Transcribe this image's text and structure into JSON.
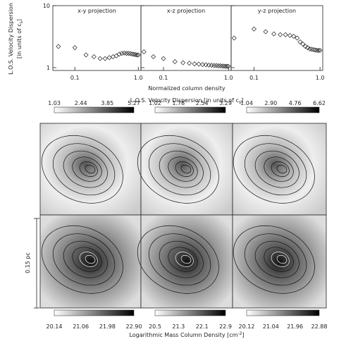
{
  "chart_data": [
    {
      "type": "scatter",
      "title": "x-y projection",
      "log_x": true,
      "log_y": true,
      "x": [
        0.055,
        0.1,
        0.15,
        0.2,
        0.25,
        0.3,
        0.35,
        0.4,
        0.45,
        0.5,
        0.55,
        0.6,
        0.65,
        0.7,
        0.75,
        0.8,
        0.85,
        0.9,
        0.95,
        1.0
      ],
      "values": [
        2.2,
        2.1,
        1.6,
        1.5,
        1.4,
        1.4,
        1.45,
        1.5,
        1.55,
        1.65,
        1.7,
        1.72,
        1.7,
        1.7,
        1.68,
        1.66,
        1.64,
        1.62,
        1.6,
        1.6
      ],
      "xlim": [
        0.045,
        1.1
      ],
      "ylim": [
        0.9,
        10
      ],
      "xticks": [
        0.1,
        {
          "value": 1,
          "label": "1.0"
        }
      ],
      "yticks": [
        1,
        10
      ]
    },
    {
      "type": "scatter",
      "title": "x-z projection",
      "log_x": true,
      "log_y": true,
      "x": [
        0.05,
        0.07,
        0.1,
        0.15,
        0.2,
        0.25,
        0.3,
        0.35,
        0.4,
        0.45,
        0.5,
        0.55,
        0.6,
        0.65,
        0.7,
        0.75,
        0.8,
        0.85,
        0.9,
        0.95,
        1.0
      ],
      "values": [
        1.8,
        1.5,
        1.4,
        1.25,
        1.2,
        1.18,
        1.15,
        1.14,
        1.12,
        1.11,
        1.1,
        1.09,
        1.08,
        1.08,
        1.07,
        1.07,
        1.06,
        1.06,
        1.05,
        1.05,
        1.05
      ],
      "xlim": [
        0.045,
        1.1
      ],
      "ylim": [
        0.9,
        10
      ],
      "xticks": [
        0.1,
        {
          "value": 1,
          "label": "1.0"
        }
      ],
      "yticks": [
        1,
        10
      ]
    },
    {
      "type": "scatter",
      "title": "y-z projection",
      "log_x": true,
      "log_y": true,
      "x": [
        0.05,
        0.1,
        0.15,
        0.2,
        0.25,
        0.3,
        0.35,
        0.4,
        0.45,
        0.5,
        0.55,
        0.6,
        0.65,
        0.7,
        0.75,
        0.8,
        0.85,
        0.9,
        0.95,
        1.0
      ],
      "values": [
        3.0,
        4.2,
        3.8,
        3.5,
        3.4,
        3.4,
        3.3,
        3.2,
        3.0,
        2.6,
        2.4,
        2.2,
        2.1,
        2.0,
        1.98,
        1.95,
        1.92,
        1.9,
        1.9,
        1.9
      ],
      "xlim": [
        0.045,
        1.1
      ],
      "ylim": [
        0.9,
        10
      ],
      "xticks": [
        0.1,
        {
          "value": 1,
          "label": "1.0"
        }
      ],
      "yticks": [
        1,
        10
      ]
    }
  ],
  "figure": {
    "ylabel_1": "L.O.S. Velocity Dispersion",
    "ylabel_2": "[in units of c",
    "ylabel_sub": "s",
    "ylabel_end": "]",
    "xlabel": "Normalized column density",
    "velocity_colorbar": {
      "title": "L.O.S. Velocity Dispersion [in units of c",
      "title_sub": "s",
      "title_end": "]",
      "ticks": [
        [
          "1.03",
          "2.44",
          "3.85",
          "5.27"
        ],
        [
          "1.02",
          "1.78",
          "2.54",
          "3.29"
        ],
        [
          "1.04",
          "2.90",
          "4.76",
          "6.62"
        ]
      ]
    },
    "density_colorbar": {
      "title": "Logarithmic Mass Column Density [cm",
      "title_sup": "-2",
      "title_end": "]",
      "ticks": [
        [
          "20.14",
          "21.06",
          "21.98",
          "22.90"
        ],
        [
          "20.5",
          "21.3",
          "22.1",
          "22.9"
        ],
        [
          "20.12",
          "21.04",
          "21.96",
          "22.88"
        ]
      ]
    },
    "scale_bar": "0.15 pc"
  }
}
